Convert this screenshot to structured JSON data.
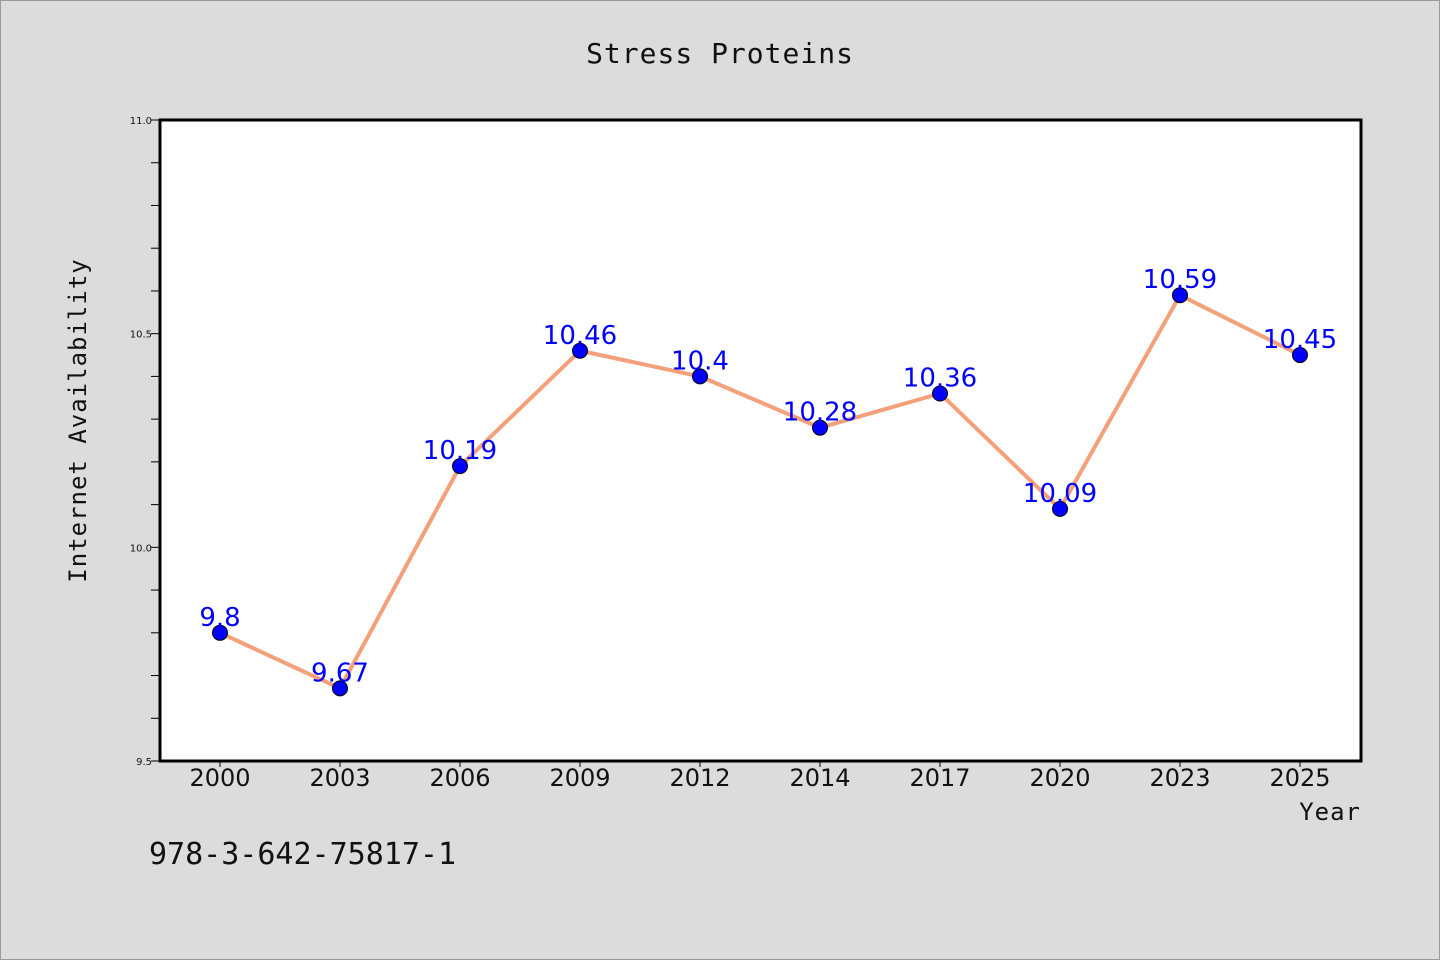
{
  "chart_data": {
    "type": "line",
    "title": "Stress Proteins",
    "xlabel": "Year",
    "ylabel": "Internet Availability",
    "categories": [
      "2000",
      "2003",
      "2006",
      "2009",
      "2012",
      "2014",
      "2017",
      "2020",
      "2023",
      "2025"
    ],
    "series": [
      {
        "values": [
          9.8,
          9.67,
          10.19,
          10.46,
          10.4,
          10.28,
          10.36,
          10.09,
          10.59,
          10.45
        ],
        "labels": [
          "9.8",
          "9.67",
          "10.19",
          "10.46",
          "10.4",
          "10.28",
          "10.36",
          "10.09",
          "10.59",
          "10.45"
        ],
        "line_color": "#f4a07a",
        "marker_color": "#0000ff"
      }
    ],
    "ylim": [
      9.5,
      11.0
    ],
    "yticks": [
      "9.5",
      "10.0",
      "10.5",
      "11.0"
    ],
    "grid": false,
    "legend": "none"
  },
  "footer_text": "978-3-642-75817-1"
}
